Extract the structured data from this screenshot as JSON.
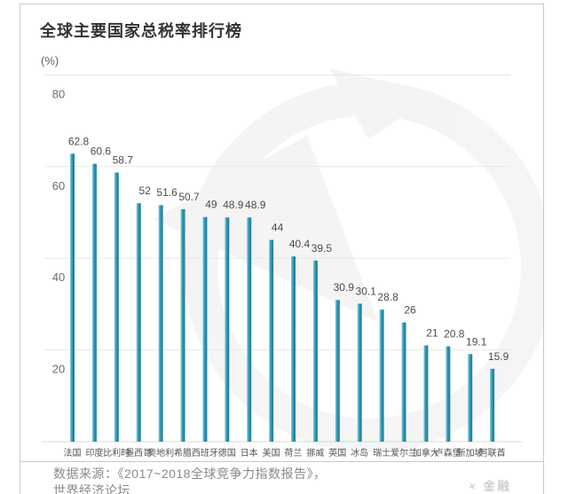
{
  "card": {
    "title": "全球主要国家总税率排行榜",
    "unit_label": "(%)"
  },
  "chart_data": {
    "type": "bar",
    "title": "全球主要国家总税率排行榜",
    "ylabel": "(%)",
    "categories": [
      "法国",
      "印度",
      "比利时",
      "墨西哥",
      "奥地利",
      "希腊",
      "西班牙",
      "德国",
      "日本",
      "美国",
      "荷兰",
      "挪威",
      "英国",
      "冰岛",
      "瑞士",
      "爱尔兰",
      "加拿大",
      "卢森堡",
      "新加坡",
      "阿联酋"
    ],
    "values": [
      62.8,
      60.6,
      58.7,
      52,
      51.6,
      50.7,
      49,
      48.9,
      48.9,
      44,
      40.4,
      39.5,
      30.9,
      30.1,
      28.8,
      26,
      21,
      20.8,
      19.1,
      15.9
    ],
    "yticks": [
      80,
      60,
      40,
      20
    ],
    "ylim": [
      0,
      95
    ],
    "grid": true,
    "legend": "none",
    "colors": {
      "bar_light": "#8fd2e2",
      "bar_mid": "#2e93b1",
      "bar_dark": "#1b7d9c",
      "grid": "#e7e7e7",
      "axis": "#d8d8d8",
      "watermark": "#ececec",
      "value_label": "#4c4c4c",
      "tick_label": "#6b6b6b",
      "category_label": "#555555"
    }
  },
  "source": {
    "line1": "数据来源：《2017~2018全球竞争力指数报告》，",
    "line2": "世界经济论坛"
  },
  "watermark": {
    "text": "金融",
    "logo_glyph": "×"
  }
}
